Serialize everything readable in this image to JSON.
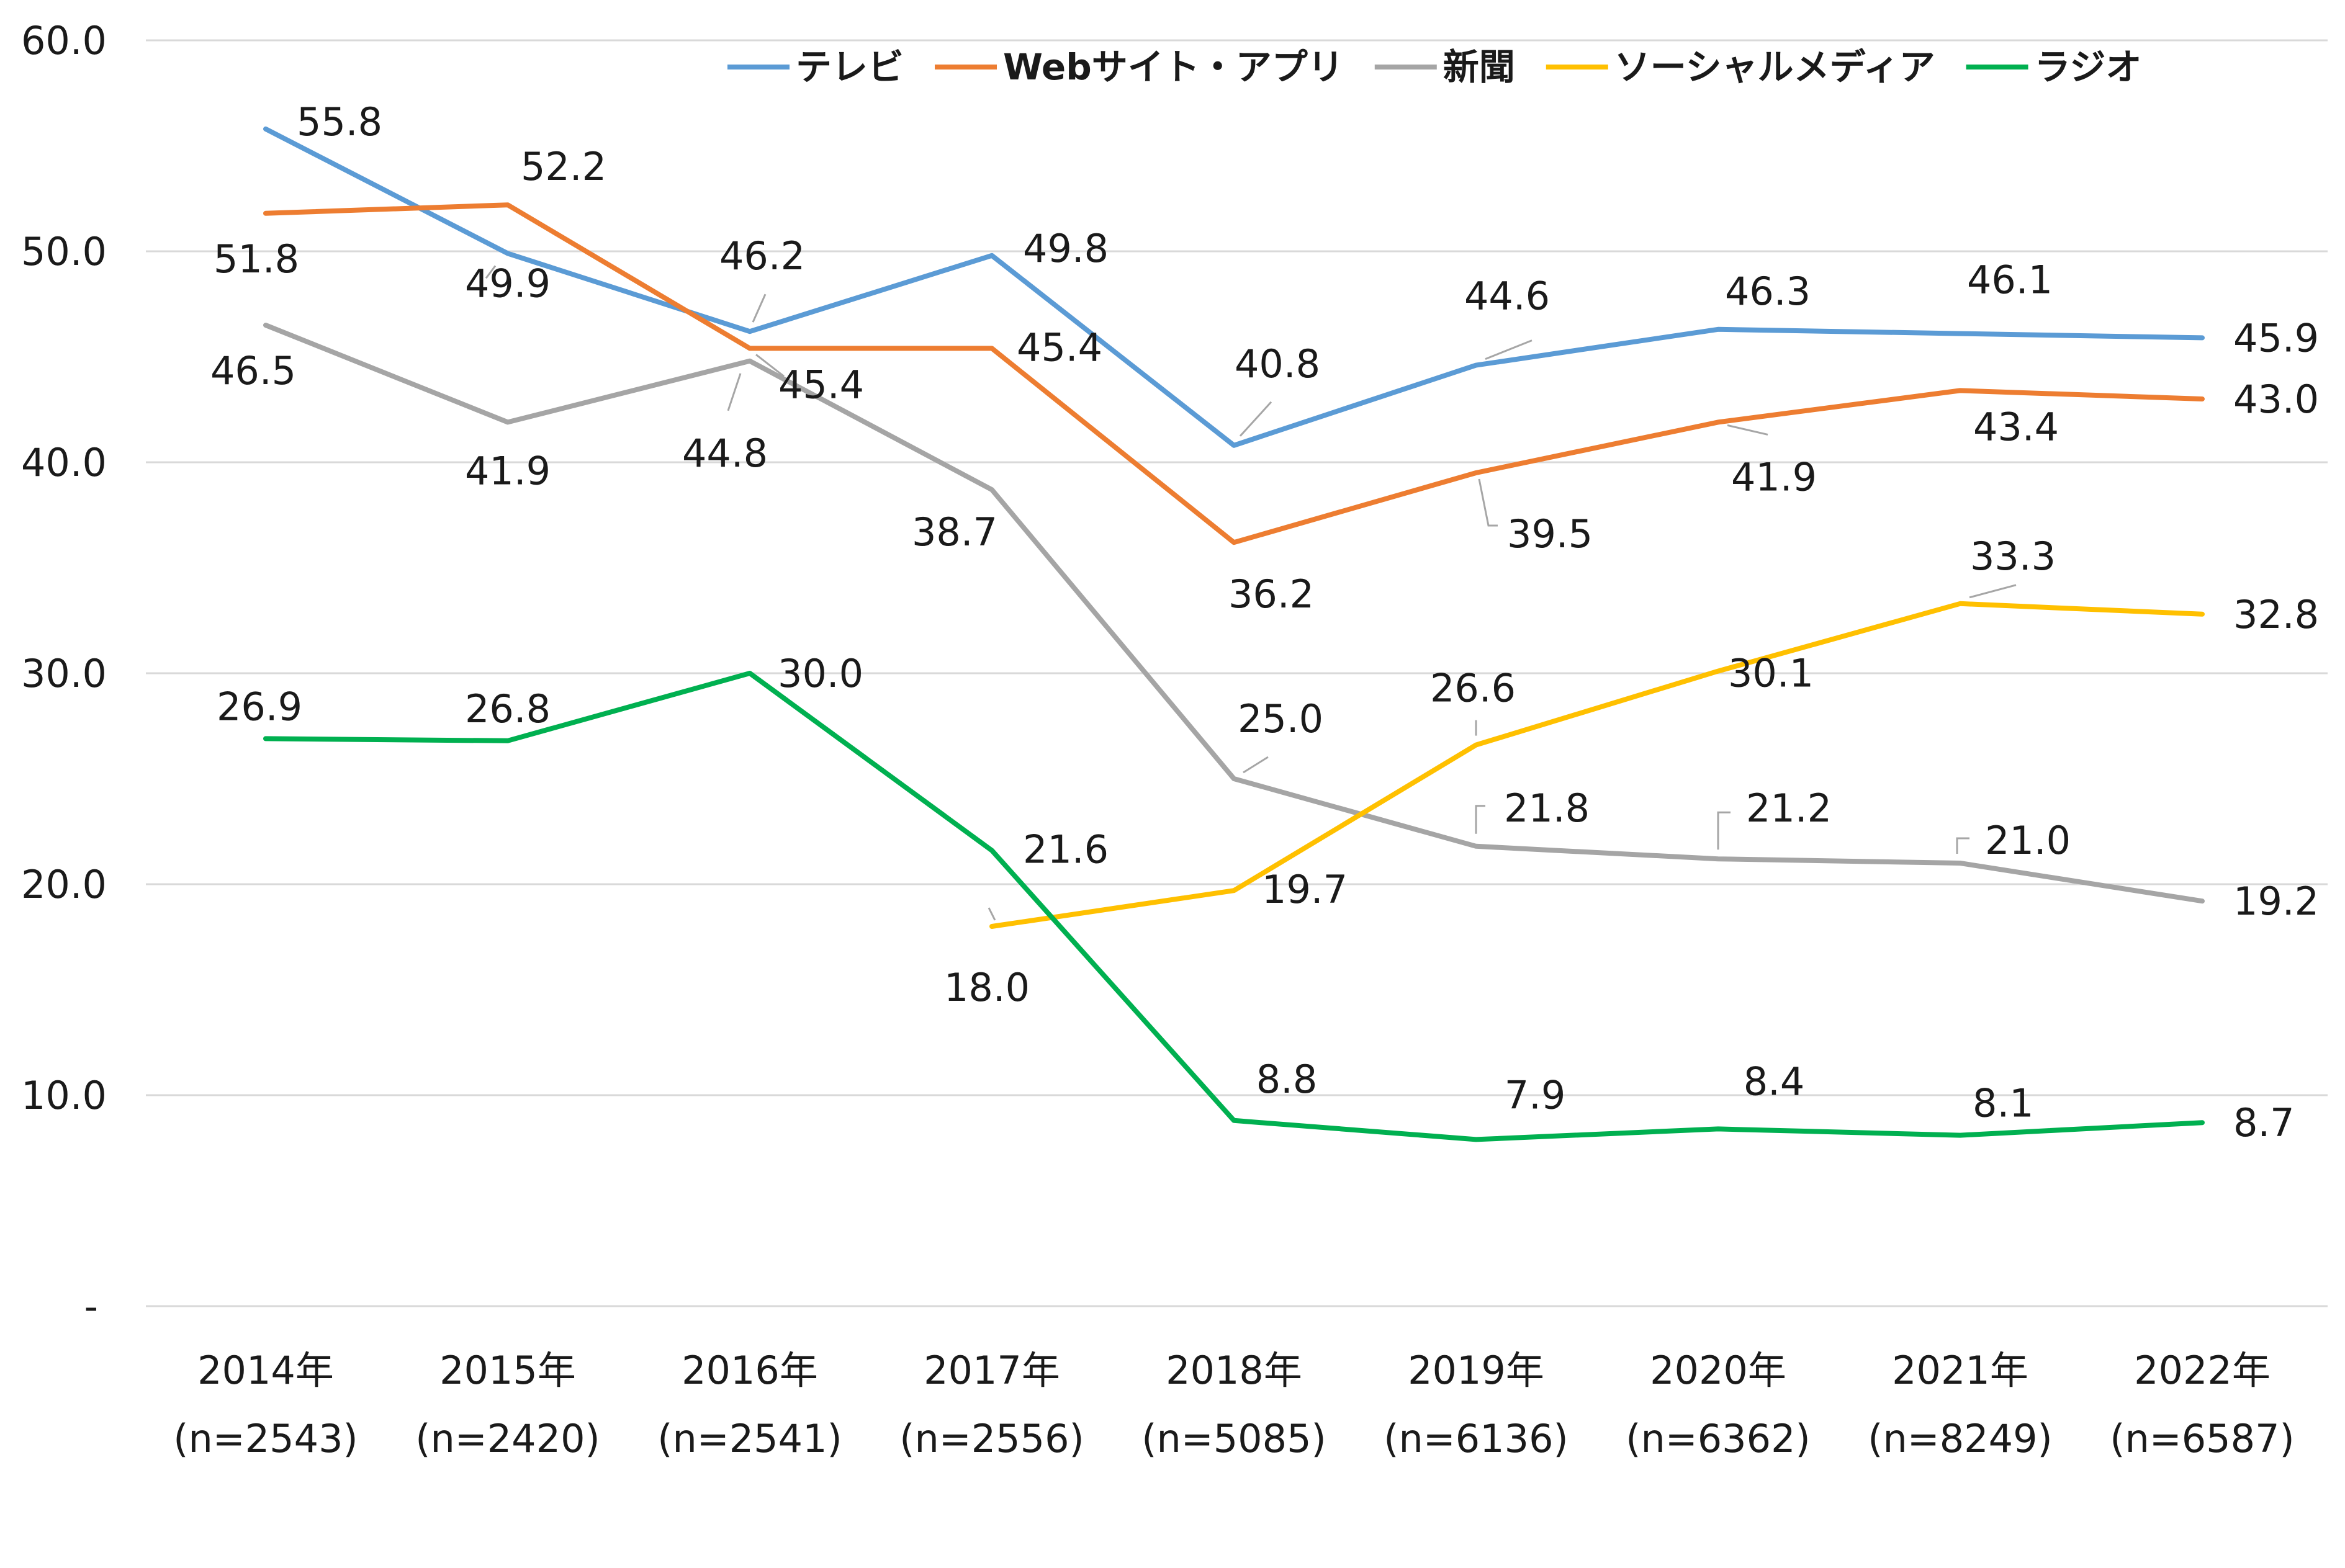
{
  "chart_data": {
    "type": "line",
    "title": "",
    "xlabel": "",
    "ylabel": "",
    "ylim": [
      0,
      60
    ],
    "y_ticks": [
      {
        "value": 0,
        "label": "-"
      },
      {
        "value": 10,
        "label": "10.0"
      },
      {
        "value": 20,
        "label": "20.0"
      },
      {
        "value": 30,
        "label": "30.0"
      },
      {
        "value": 40,
        "label": "40.0"
      },
      {
        "value": 50,
        "label": "50.0"
      },
      {
        "value": 60,
        "label": "60.0"
      }
    ],
    "grid": true,
    "legend_position": "top",
    "categories": [
      {
        "year": "2014年",
        "n": "(n=2543)"
      },
      {
        "year": "2015年",
        "n": "(n=2420)"
      },
      {
        "year": "2016年",
        "n": "(n=2541)"
      },
      {
        "year": "2017年",
        "n": "(n=2556)"
      },
      {
        "year": "2018年",
        "n": "(n=5085)"
      },
      {
        "year": "2019年",
        "n": "(n=6136)"
      },
      {
        "year": "2020年",
        "n": "(n=6362)"
      },
      {
        "year": "2021年",
        "n": "(n=8249)"
      },
      {
        "year": "2022年",
        "n": "(n=6587)"
      }
    ],
    "series": [
      {
        "name": "テレビ",
        "color": "#5B9BD5",
        "values": [
          55.8,
          49.9,
          46.2,
          49.8,
          40.8,
          44.6,
          46.3,
          46.1,
          45.9
        ],
        "labels": [
          "55.8",
          "49.9",
          "46.2",
          "49.8",
          "40.8",
          "44.6",
          "46.3",
          "46.1",
          "45.9"
        ]
      },
      {
        "name": "Webサイト・アプリ",
        "color": "#ED7D31",
        "values": [
          51.8,
          52.2,
          45.4,
          45.4,
          36.2,
          39.5,
          41.9,
          43.4,
          43.0
        ],
        "labels": [
          "51.8",
          "52.2",
          "45.4",
          "45.4",
          "36.2",
          "39.5",
          "41.9",
          "43.4",
          "43.0"
        ]
      },
      {
        "name": "新聞",
        "color": "#A5A5A5",
        "values": [
          46.5,
          41.9,
          44.8,
          38.7,
          25.0,
          21.8,
          21.2,
          21.0,
          19.2
        ],
        "labels": [
          "46.5",
          "41.9",
          "44.8",
          "38.7",
          "25.0",
          "21.8",
          "21.2",
          "21.0",
          "19.2"
        ]
      },
      {
        "name": "ソーシャルメディア",
        "color": "#FFC000",
        "values": [
          null,
          null,
          null,
          18.0,
          19.7,
          26.6,
          30.1,
          33.3,
          32.8
        ],
        "labels": [
          null,
          null,
          null,
          "18.0",
          "19.7",
          "26.6",
          "30.1",
          "33.3",
          "32.8"
        ]
      },
      {
        "name": "ラジオ",
        "color": "#00B050",
        "values": [
          26.9,
          26.8,
          30.0,
          21.6,
          8.8,
          7.9,
          8.4,
          8.1,
          8.7
        ],
        "labels": [
          "26.9",
          "26.8",
          "30.0",
          "21.6",
          "8.8",
          "7.9",
          "8.4",
          "8.1",
          "8.7"
        ]
      }
    ]
  }
}
